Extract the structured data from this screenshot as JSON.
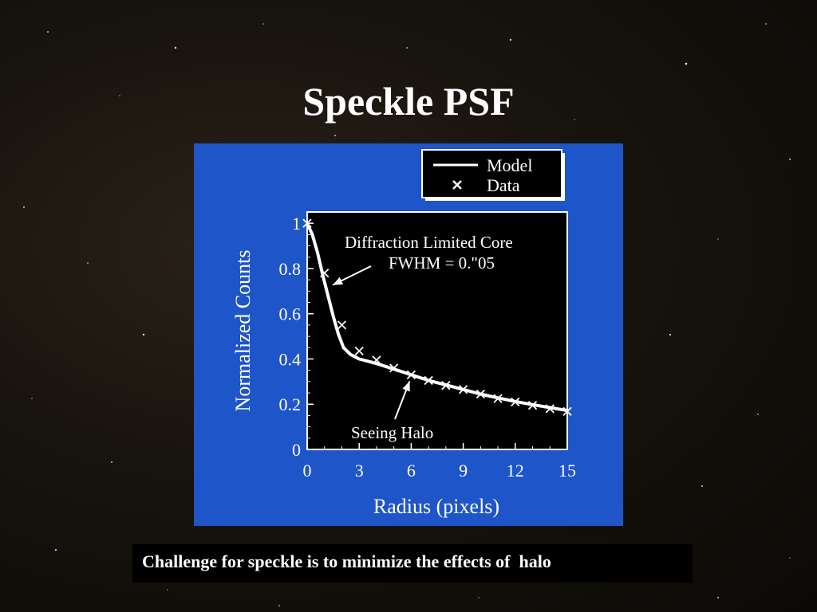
{
  "slide": {
    "title": "Speckle PSF",
    "caption": "Challenge for speckle is to minimize the effects of  halo"
  },
  "colors": {
    "panel": "#1e55c8",
    "plot_area": "#000000",
    "lines": "#ffffff"
  },
  "chart_data": {
    "type": "line",
    "xlabel": "Radius (pixels)",
    "ylabel": "Normalized Counts",
    "xlim": [
      0,
      15
    ],
    "ylim": [
      0,
      1.05
    ],
    "xticks": [
      0,
      3,
      6,
      9,
      12,
      15
    ],
    "yticks": [
      0,
      0.2,
      0.4,
      0.6,
      0.8,
      1
    ],
    "ytick_labels": [
      "0",
      "0.2",
      "0.4",
      "0.6",
      "0.8",
      "1"
    ],
    "legend": {
      "position": "top-right",
      "entries": [
        {
          "label": "Model",
          "marker": "line"
        },
        {
          "label": "Data",
          "marker": "x"
        }
      ]
    },
    "series": [
      {
        "name": "Model",
        "style": "line",
        "x": [
          0,
          0.3,
          0.6,
          0.9,
          1.2,
          1.5,
          1.8,
          2.1,
          2.5,
          3,
          3.5,
          4,
          5,
          6,
          7,
          8,
          9,
          10,
          11,
          12,
          13,
          14,
          15
        ],
        "y": [
          1.0,
          0.95,
          0.87,
          0.77,
          0.68,
          0.59,
          0.51,
          0.45,
          0.42,
          0.4,
          0.39,
          0.38,
          0.355,
          0.33,
          0.305,
          0.285,
          0.265,
          0.245,
          0.228,
          0.212,
          0.198,
          0.185,
          0.172
        ]
      },
      {
        "name": "Data",
        "style": "x",
        "x": [
          0,
          1,
          2,
          3,
          4,
          5,
          6,
          7,
          8,
          9,
          10,
          11,
          12,
          13,
          14,
          15
        ],
        "y": [
          1.0,
          0.78,
          0.55,
          0.435,
          0.395,
          0.36,
          0.33,
          0.305,
          0.283,
          0.265,
          0.245,
          0.225,
          0.21,
          0.195,
          0.18,
          0.168
        ]
      }
    ],
    "annotations": [
      {
        "text": [
          "Diffraction Limited Core",
          "FWHM = 0.\"05"
        ],
        "arrow_to": [
          1.2,
          0.72
        ]
      },
      {
        "text": [
          "Seeing Halo"
        ],
        "arrow_to": [
          6,
          0.33
        ]
      }
    ]
  }
}
